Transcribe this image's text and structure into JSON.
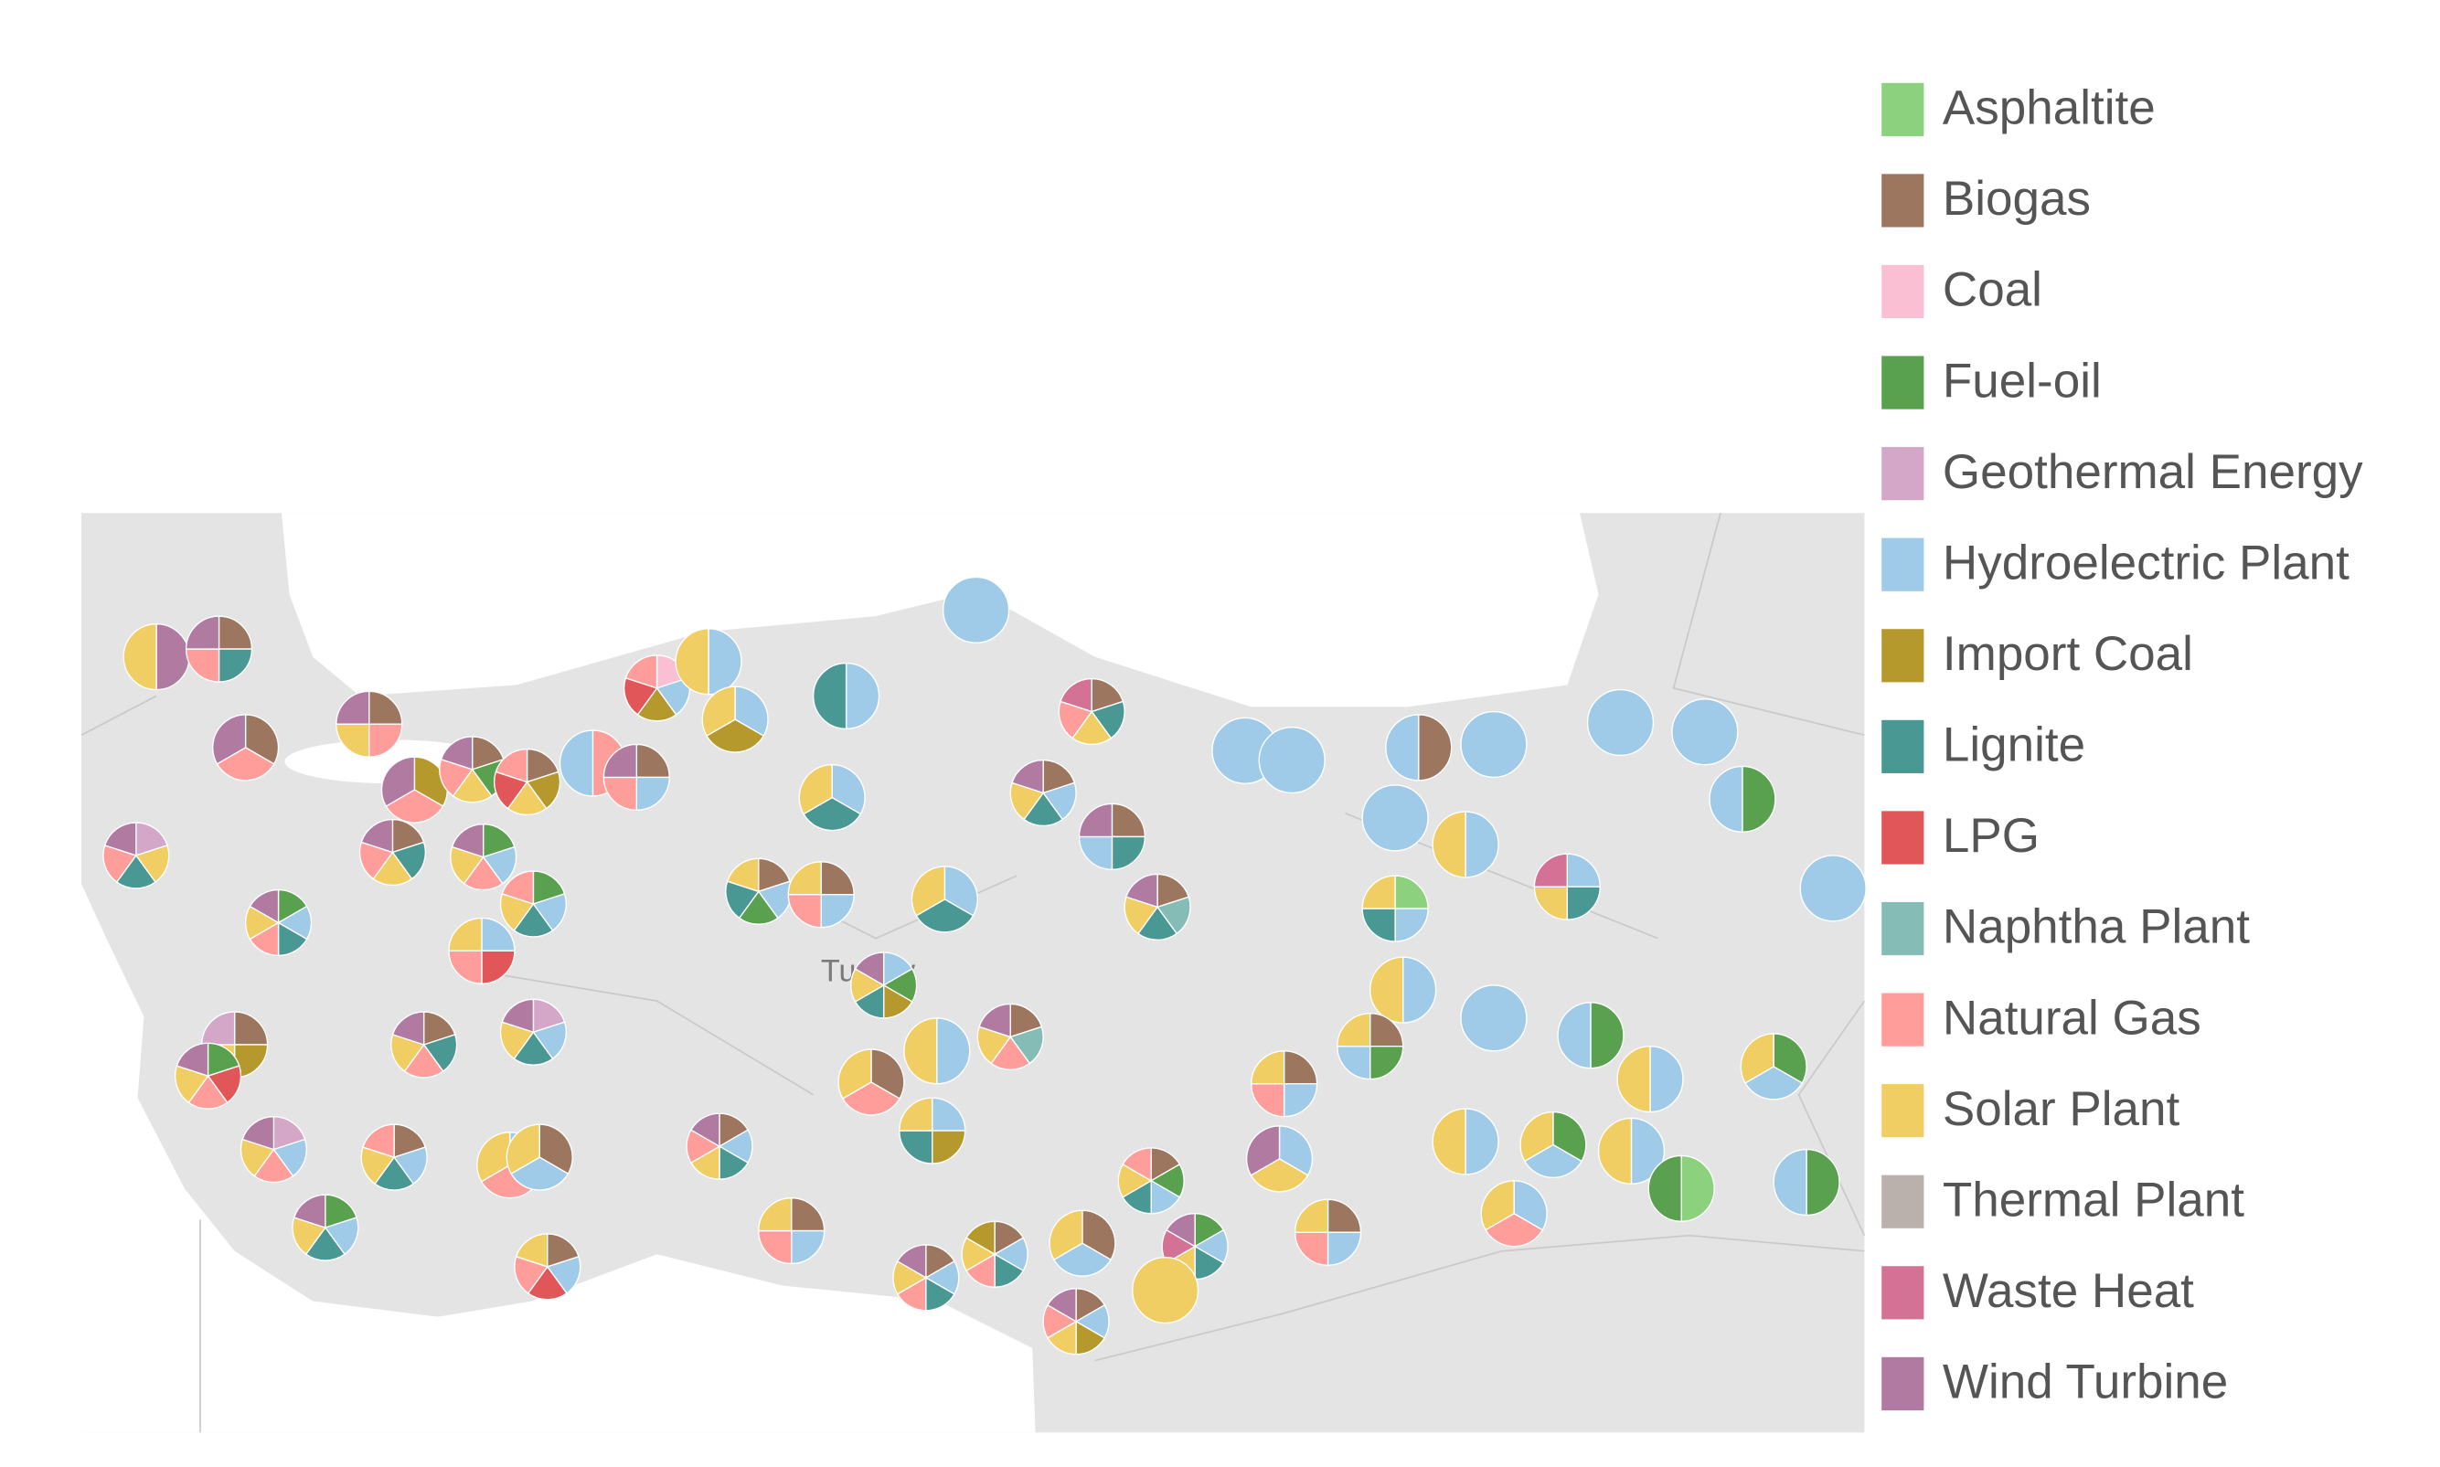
{
  "legend": {
    "items": [
      {
        "name": "Asphaltite",
        "color": "#8cd17d"
      },
      {
        "name": "Biogas",
        "color": "#9d7660"
      },
      {
        "name": "Coal",
        "color": "#fabfd2"
      },
      {
        "name": "Fuel-oil",
        "color": "#59a14f"
      },
      {
        "name": "Geothermal Energy",
        "color": "#d4a6c8"
      },
      {
        "name": "Hydroelectric Plant",
        "color": "#a0cbe8"
      },
      {
        "name": "Import Coal",
        "color": "#b6992d"
      },
      {
        "name": "Lignite",
        "color": "#499894"
      },
      {
        "name": "LPG",
        "color": "#e15759"
      },
      {
        "name": "Naphtha Plant",
        "color": "#86bcb6"
      },
      {
        "name": "Natural Gas",
        "color": "#ff9d9a"
      },
      {
        "name": "Solar Plant",
        "color": "#f1ce63"
      },
      {
        "name": "Thermal Plant",
        "color": "#bab0ac"
      },
      {
        "name": "Waste Heat",
        "color": "#d37295"
      },
      {
        "name": "Wind Turbine",
        "color": "#b07aa1"
      }
    ]
  },
  "map": {
    "label": "Turkey",
    "pies": [
      {
        "sources": [
          "Wind Turbine",
          "Solar Plant"
        ]
      },
      {
        "sources": [
          "Biogas",
          "Lignite",
          "Natural Gas",
          "Wind Turbine"
        ]
      },
      {
        "sources": [
          "Biogas",
          "Natural Gas",
          "Wind Turbine"
        ]
      },
      {
        "sources": [
          "Biogas",
          "Natural Gas",
          "Solar Plant",
          "Wind Turbine"
        ]
      },
      {
        "sources": [
          "Geothermal Energy",
          "Solar Plant",
          "Lignite",
          "Natural Gas",
          "Wind Turbine"
        ]
      },
      {
        "sources": [
          "Import Coal",
          "Natural Gas",
          "Wind Turbine"
        ]
      },
      {
        "sources": [
          "Biogas",
          "Fuel-oil",
          "Solar Plant",
          "Natural Gas",
          "Wind Turbine"
        ]
      },
      {
        "sources": [
          "Biogas",
          "Import Coal",
          "Solar Plant",
          "LPG",
          "Natural Gas"
        ]
      },
      {
        "sources": [
          "Natural Gas",
          "Hydroelectric Plant"
        ]
      },
      {
        "sources": [
          "Biogas",
          "Hydroelectric Plant",
          "Natural Gas",
          "Wind Turbine"
        ]
      },
      {
        "sources": [
          "Coal",
          "Hydroelectric Plant",
          "Import Coal",
          "LPG",
          "Natural Gas"
        ]
      },
      {
        "sources": [
          "Hydroelectric Plant",
          "Solar Plant"
        ]
      },
      {
        "sources": [
          "Hydroelectric Plant",
          "Import Coal",
          "Solar Plant"
        ]
      },
      {
        "sources": [
          "Hydroelectric Plant",
          "Lignite"
        ]
      },
      {
        "sources": [
          "Hydroelectric Plant"
        ]
      },
      {
        "sources": [
          "Biogas",
          "Lignite",
          "Solar Plant",
          "Natural Gas",
          "Wind Turbine"
        ]
      },
      {
        "sources": [
          "Fuel-oil",
          "Hydroelectric Plant",
          "Natural Gas",
          "Solar Plant",
          "Wind Turbine"
        ]
      },
      {
        "sources": [
          "Fuel-oil",
          "Hydroelectric Plant",
          "Lignite",
          "Natural Gas",
          "Solar Plant",
          "Wind Turbine"
        ]
      },
      {
        "sources": [
          "Fuel-oil",
          "Hydroelectric Plant",
          "Lignite",
          "Solar Plant",
          "Natural Gas"
        ]
      },
      {
        "sources": [
          "Hydroelectric Plant",
          "LPG",
          "Natural Gas",
          "Solar Plant"
        ]
      },
      {
        "sources": [
          "Biogas",
          "Hydroelectric Plant",
          "Fuel-oil",
          "Lignite",
          "Solar Plant"
        ]
      },
      {
        "sources": [
          "Biogas",
          "Hydroelectric Plant",
          "Natural Gas",
          "Solar Plant"
        ]
      },
      {
        "sources": [
          "Hydroelectric Plant",
          "Lignite",
          "Solar Plant"
        ]
      },
      {
        "sources": [
          "Hydroelectric Plant",
          "Lignite",
          "Solar Plant"
        ]
      },
      {
        "sources": [
          "Biogas",
          "Lignite",
          "Solar Plant",
          "Natural Gas",
          "Waste Heat"
        ]
      },
      {
        "sources": [
          "Biogas",
          "Hydroelectric Plant",
          "Lignite",
          "Solar Plant",
          "Wind Turbine"
        ]
      },
      {
        "sources": [
          "Biogas",
          "Lignite",
          "Hydroelectric Plant",
          "Wind Turbine"
        ]
      },
      {
        "sources": [
          "Biogas",
          "Naphtha Plant",
          "Lignite",
          "Solar Plant",
          "Wind Turbine"
        ]
      },
      {
        "sources": [
          "Hydroelectric Plant",
          "Fuel-oil",
          "Import Coal",
          "Lignite",
          "Solar Plant",
          "Wind Turbine"
        ]
      },
      {
        "sources": [
          "Hydroelectric Plant",
          "Solar Plant"
        ]
      },
      {
        "sources": [
          "Biogas",
          "Naphtha Plant",
          "Natural Gas",
          "Solar Plant",
          "Wind Turbine"
        ]
      },
      {
        "sources": [
          "Biogas",
          "Natural Gas",
          "Solar Plant"
        ]
      },
      {
        "sources": [
          "Hydroelectric Plant",
          "Import Coal",
          "Lignite",
          "Solar Plant"
        ]
      },
      {
        "sources": [
          "Biogas",
          "Lignite",
          "Natural Gas",
          "Solar Plant",
          "Wind Turbine"
        ]
      },
      {
        "sources": [
          "Geothermal Energy",
          "Hydroelectric Plant",
          "Lignite",
          "Solar Plant",
          "Wind Turbine"
        ]
      },
      {
        "sources": [
          "Biogas",
          "Import Coal",
          "Solar Plant",
          "Geothermal Energy"
        ]
      },
      {
        "sources": [
          "Fuel-oil",
          "LPG",
          "Natural Gas",
          "Solar Plant",
          "Wind Turbine"
        ]
      },
      {
        "sources": [
          "Geothermal Energy",
          "Hydroelectric Plant",
          "Natural Gas",
          "Solar Plant",
          "Wind Turbine"
        ]
      },
      {
        "sources": [
          "Biogas",
          "Hydroelectric Plant",
          "Lignite",
          "Solar Plant",
          "Natural Gas"
        ]
      },
      {
        "sources": [
          "Hydroelectric Plant",
          "Natural Gas",
          "Solar Plant"
        ]
      },
      {
        "sources": [
          "Biogas",
          "Hydroelectric Plant",
          "Solar Plant"
        ]
      },
      {
        "sources": [
          "Biogas",
          "Hydroelectric Plant",
          "Lignite",
          "Solar Plant",
          "Natural Gas",
          "Wind Turbine"
        ]
      },
      {
        "sources": [
          "Fuel-oil",
          "Hydroelectric Plant",
          "Lignite",
          "Solar Plant",
          "Wind Turbine"
        ]
      },
      {
        "sources": [
          "Biogas",
          "Hydroelectric Plant",
          "LPG",
          "Natural Gas",
          "Solar Plant"
        ]
      },
      {
        "sources": [
          "Biogas",
          "Hydroelectric Plant",
          "Natural Gas",
          "Solar Plant"
        ]
      },
      {
        "sources": [
          "Biogas",
          "Hydroelectric Plant",
          "Lignite",
          "Natural Gas",
          "Solar Plant",
          "Wind Turbine"
        ]
      },
      {
        "sources": [
          "Biogas",
          "Hydroelectric Plant",
          "Lignite",
          "Natural Gas",
          "Solar Plant",
          "Import Coal"
        ]
      },
      {
        "sources": [
          "Biogas",
          "Hydroelectric Plant",
          "Solar Plant"
        ]
      },
      {
        "sources": [
          "Biogas",
          "Hydroelectric Plant",
          "Import Coal",
          "Solar Plant",
          "Natural Gas",
          "Wind Turbine"
        ]
      },
      {
        "sources": [
          "Biogas",
          "Fuel-oil",
          "Hydroelectric Plant",
          "Lignite",
          "Solar Plant",
          "Natural Gas"
        ]
      },
      {
        "sources": [
          "Fuel-oil",
          "Hydroelectric Plant",
          "Lignite",
          "Solar Plant",
          "Waste Heat",
          "Wind Turbine"
        ]
      },
      {
        "sources": [
          "Solar Plant"
        ]
      },
      {
        "sources": [
          "Hydroelectric Plant"
        ]
      },
      {
        "sources": [
          "Hydroelectric Plant"
        ]
      },
      {
        "sources": [
          "Biogas",
          "Hydroelectric Plant"
        ]
      },
      {
        "sources": [
          "Hydroelectric Plant"
        ]
      },
      {
        "sources": [
          "Hydroelectric Plant"
        ]
      },
      {
        "sources": [
          "Hydroelectric Plant",
          "Solar Plant"
        ]
      },
      {
        "sources": [
          "Hydroelectric Plant"
        ]
      },
      {
        "sources": [
          "Hydroelectric Plant"
        ]
      },
      {
        "sources": [
          "Fuel-oil",
          "Hydroelectric Plant"
        ]
      },
      {
        "sources": [
          "Hydroelectric Plant"
        ]
      },
      {
        "sources": [
          "Hydroelectric Plant",
          "Lignite",
          "Solar Plant",
          "Waste Heat"
        ]
      },
      {
        "sources": [
          "Asphaltite",
          "Hydroelectric Plant",
          "Lignite",
          "Solar Plant"
        ]
      },
      {
        "sources": [
          "Hydroelectric Plant",
          "Solar Plant"
        ]
      },
      {
        "sources": [
          "Hydroelectric Plant"
        ]
      },
      {
        "sources": [
          "Biogas",
          "Fuel-oil",
          "Hydroelectric Plant",
          "Solar Plant"
        ]
      },
      {
        "sources": [
          "Fuel-oil",
          "Hydroelectric Plant"
        ]
      },
      {
        "sources": [
          "Hydroelectric Plant",
          "Solar Plant"
        ]
      },
      {
        "sources": [
          "Fuel-oil",
          "Hydroelectric Plant",
          "Solar Plant"
        ]
      },
      {
        "sources": [
          "Biogas",
          "Hydroelectric Plant",
          "Natural Gas",
          "Solar Plant"
        ]
      },
      {
        "sources": [
          "Hydroelectric Plant",
          "Solar Plant",
          "Wind Turbine"
        ]
      },
      {
        "sources": [
          "Hydroelectric Plant",
          "Solar Plant"
        ]
      },
      {
        "sources": [
          "Fuel-oil",
          "Hydroelectric Plant",
          "Solar Plant"
        ]
      },
      {
        "sources": [
          "Hydroelectric Plant",
          "Solar Plant"
        ]
      },
      {
        "sources": [
          "Asphaltite",
          "Fuel-oil"
        ]
      },
      {
        "sources": [
          "Fuel-oil",
          "Hydroelectric Plant"
        ]
      },
      {
        "sources": [
          "Hydroelectric Plant",
          "Natural Gas",
          "Solar Plant"
        ]
      },
      {
        "sources": [
          "Biogas",
          "Hydroelectric Plant",
          "Natural Gas",
          "Solar Plant"
        ]
      }
    ]
  }
}
